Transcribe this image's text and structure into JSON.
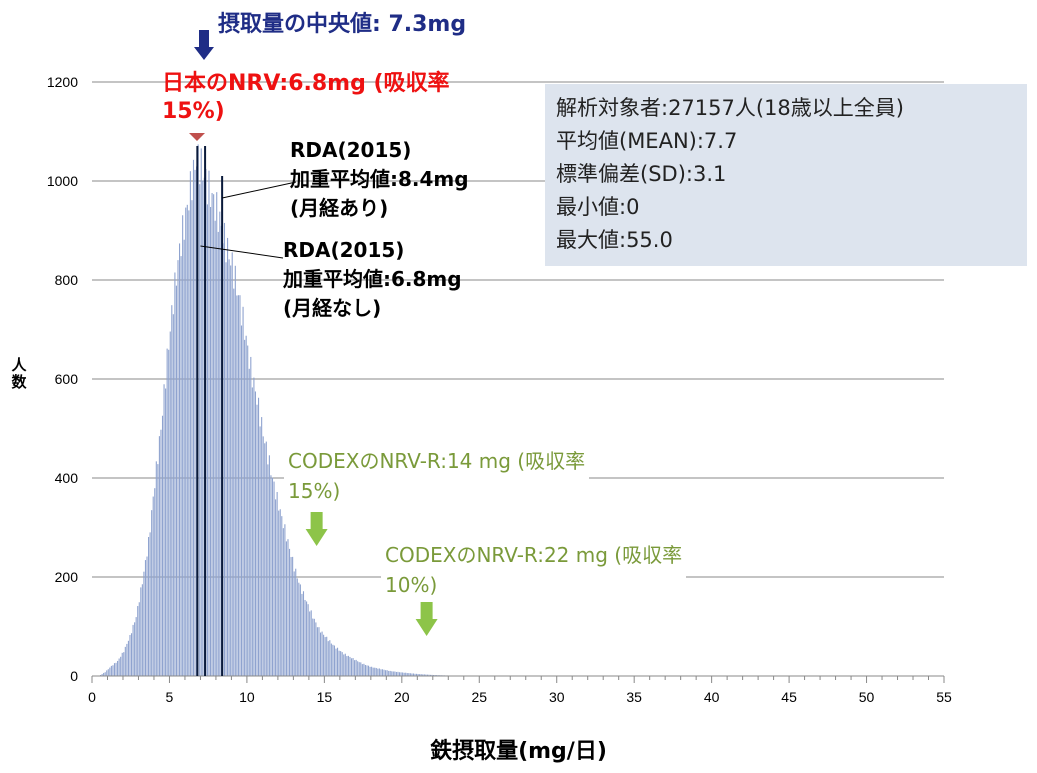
{
  "chart_data": {
    "type": "bar",
    "title": "",
    "xlabel": "鉄摂取量(mg/日)",
    "ylabel": "人数",
    "xlim": [
      0,
      55
    ],
    "ylim": [
      0,
      1200
    ],
    "x_ticks": [
      0,
      5,
      10,
      15,
      20,
      25,
      30,
      35,
      40,
      45,
      50,
      55
    ],
    "y_ticks": [
      0,
      200,
      400,
      600,
      800,
      1000,
      1200
    ],
    "grid": "horizontal",
    "bin_width": 0.1,
    "anchors": [
      [
        0.4,
        0
      ],
      [
        0.8,
        8
      ],
      [
        1.2,
        20
      ],
      [
        1.6,
        30
      ],
      [
        2.0,
        50
      ],
      [
        2.4,
        80
      ],
      [
        2.8,
        120
      ],
      [
        3.2,
        190
      ],
      [
        3.6,
        270
      ],
      [
        4.0,
        390
      ],
      [
        4.4,
        500
      ],
      [
        4.8,
        640
      ],
      [
        5.2,
        760
      ],
      [
        5.6,
        860
      ],
      [
        6.0,
        930
      ],
      [
        6.4,
        1000
      ],
      [
        6.7,
        1045
      ],
      [
        7.0,
        1030
      ],
      [
        7.4,
        990
      ],
      [
        7.8,
        960
      ],
      [
        8.2,
        920
      ],
      [
        8.6,
        870
      ],
      [
        9.0,
        830
      ],
      [
        9.4,
        770
      ],
      [
        9.8,
        700
      ],
      [
        10.2,
        620
      ],
      [
        10.6,
        560
      ],
      [
        11.0,
        490
      ],
      [
        11.4,
        430
      ],
      [
        11.8,
        370
      ],
      [
        12.2,
        320
      ],
      [
        12.6,
        270
      ],
      [
        13.0,
        220
      ],
      [
        13.4,
        180
      ],
      [
        13.8,
        150
      ],
      [
        14.2,
        120
      ],
      [
        14.6,
        95
      ],
      [
        15.0,
        80
      ],
      [
        15.6,
        60
      ],
      [
        16.2,
        45
      ],
      [
        16.8,
        35
      ],
      [
        17.4,
        25
      ],
      [
        18.0,
        18
      ],
      [
        18.6,
        14
      ],
      [
        19.2,
        10
      ],
      [
        20.0,
        7
      ],
      [
        21.0,
        4
      ],
      [
        22.0,
        2
      ],
      [
        23.0,
        1
      ],
      [
        25.0,
        0
      ]
    ],
    "reference_lines": [
      {
        "name": "摂取量の中央値",
        "x": 7.3
      },
      {
        "name": "RDA(2015) 加重平均値 (月経あり)",
        "x": 8.4
      },
      {
        "name": "RDA(2015) 加重平均値 (月経なし)",
        "x": 6.8
      }
    ],
    "markers": [
      {
        "name": "CODEXのNRV-R 15%",
        "x": 14
      },
      {
        "name": "CODEXのNRV-R 10%",
        "x": 22
      }
    ],
    "colors": {
      "bars": "#8fa3cf",
      "ref_lines": "#0a1a3a",
      "median_arrow": "#1f2d86",
      "jp_marker": "#c0504d",
      "codex_arrow": "#8dc449",
      "grid": "#888888"
    }
  },
  "annotations": {
    "median": "摂取量の中央値: 7.3mg",
    "jp_nrv_line1": "日本のNRV:6.8mg (吸収率",
    "jp_nrv_line2": "15%)",
    "rda_men_line1": "RDA(2015)",
    "rda_men_line2": "加重平均値:8.4mg",
    "rda_men_line3": "(月経あり)",
    "rda_nomen_line1": "RDA(2015)",
    "rda_nomen_line2": "加重平均値:6.8mg",
    "rda_nomen_line3": "(月経なし)",
    "codex14_line1": "CODEXのNRV-R:14 mg (吸収率",
    "codex14_line2": "15%)",
    "codex22_line1": "CODEXのNRV-R:22 mg (吸収率",
    "codex22_line2": "10%)"
  },
  "stats": {
    "target": "解析対象者:27157人(18歳以上全員)",
    "mean": "平均値(MEAN):7.7",
    "sd": "標準偏差(SD):3.1",
    "min": "最小値:0",
    "max": "最大値:55.0"
  }
}
